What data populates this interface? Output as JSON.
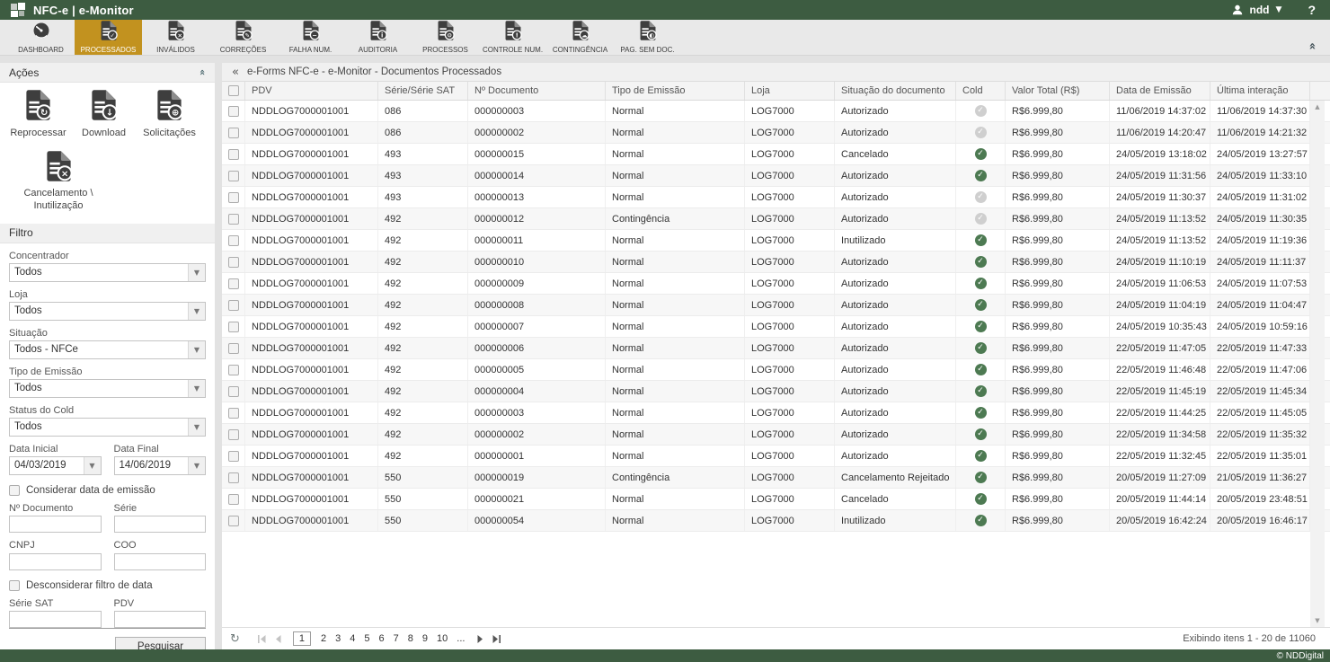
{
  "titlebar": {
    "title": "NFC-e | e-Monitor",
    "user": "ndd",
    "help": "?"
  },
  "tabs": [
    {
      "label": "DASHBOARD",
      "icon": "gauge",
      "active": false
    },
    {
      "label": "PROCESSADOS",
      "icon": "doc-check",
      "active": true
    },
    {
      "label": "INVÁLIDOS",
      "icon": "doc-x",
      "active": false
    },
    {
      "label": "CORREÇÕES",
      "icon": "doc-pencil",
      "active": false
    },
    {
      "label": "FALHA NUM.",
      "icon": "doc-minus",
      "active": false
    },
    {
      "label": "AUDITORIA",
      "icon": "doc-info",
      "active": false
    },
    {
      "label": "PROCESSOS",
      "icon": "doc-gear",
      "active": false
    },
    {
      "label": "CONTROLE NUM.",
      "icon": "doc-alert",
      "active": false
    },
    {
      "label": "CONTINGÊNCIA",
      "icon": "doc-cloud",
      "active": false
    },
    {
      "label": "PAG. SEM DOC.",
      "icon": "doc-half",
      "active": false
    }
  ],
  "actions": {
    "header": "Ações",
    "buttons": [
      {
        "label": "Reprocessar",
        "icon": "doc-reprocess",
        "wide": false
      },
      {
        "label": "Download",
        "icon": "doc-download",
        "wide": false
      },
      {
        "label": "Solicitações",
        "icon": "doc-globe",
        "wide": false
      },
      {
        "label": "Cancelamento \\ Inutilização",
        "icon": "doc-x",
        "wide": true
      }
    ]
  },
  "filter": {
    "header": "Filtro",
    "selects": [
      {
        "label": "Concentrador",
        "value": "Todos"
      },
      {
        "label": "Loja",
        "value": "Todos"
      },
      {
        "label": "Situação",
        "value": "Todos - NFCe"
      },
      {
        "label": "Tipo de Emissão",
        "value": "Todos"
      },
      {
        "label": "Status do Cold",
        "value": "Todos"
      }
    ],
    "dates": {
      "initial": {
        "label": "Data Inicial",
        "value": "04/03/2019"
      },
      "final": {
        "label": "Data Final",
        "value": "14/06/2019"
      }
    },
    "consider_emission_label": "Considerar data de emissão",
    "fields": {
      "documento": "Nº Documento",
      "serie": "Série",
      "cnpj": "CNPJ",
      "coo": "COO",
      "serie_sat": "Série SAT",
      "pdv": "PDV"
    },
    "disregard_date_label": "Desconsiderar filtro de data",
    "search_label": "Pesquisar"
  },
  "breadcrumb": "e-Forms NFC-e - e-Monitor - Documentos Processados",
  "table": {
    "columns": [
      "PDV",
      "Série/Série SAT",
      "Nº Documento",
      "Tipo de Emissão",
      "Loja",
      "Situação do documento",
      "Cold",
      "Valor Total (R$)",
      "Data de Emissão",
      "Última interação"
    ],
    "rows": [
      {
        "pdv": "NDDLOG7000001001",
        "serie": "086",
        "doc": "000000003",
        "tipo": "Normal",
        "loja": "LOG7000",
        "situacao": "Autorizado",
        "cold": "gray",
        "valor": "R$6.999,80",
        "emissao": "11/06/2019 14:37:02",
        "interacao": "11/06/2019 14:37:30"
      },
      {
        "pdv": "NDDLOG7000001001",
        "serie": "086",
        "doc": "000000002",
        "tipo": "Normal",
        "loja": "LOG7000",
        "situacao": "Autorizado",
        "cold": "gray",
        "valor": "R$6.999,80",
        "emissao": "11/06/2019 14:20:47",
        "interacao": "11/06/2019 14:21:32"
      },
      {
        "pdv": "NDDLOG7000001001",
        "serie": "493",
        "doc": "000000015",
        "tipo": "Normal",
        "loja": "LOG7000",
        "situacao": "Cancelado",
        "cold": "green",
        "valor": "R$6.999,80",
        "emissao": "24/05/2019 13:18:02",
        "interacao": "24/05/2019 13:27:57"
      },
      {
        "pdv": "NDDLOG7000001001",
        "serie": "493",
        "doc": "000000014",
        "tipo": "Normal",
        "loja": "LOG7000",
        "situacao": "Autorizado",
        "cold": "green",
        "valor": "R$6.999,80",
        "emissao": "24/05/2019 11:31:56",
        "interacao": "24/05/2019 11:33:10"
      },
      {
        "pdv": "NDDLOG7000001001",
        "serie": "493",
        "doc": "000000013",
        "tipo": "Normal",
        "loja": "LOG7000",
        "situacao": "Autorizado",
        "cold": "gray",
        "valor": "R$6.999,80",
        "emissao": "24/05/2019 11:30:37",
        "interacao": "24/05/2019 11:31:02"
      },
      {
        "pdv": "NDDLOG7000001001",
        "serie": "492",
        "doc": "000000012",
        "tipo": "Contingência",
        "loja": "LOG7000",
        "situacao": "Autorizado",
        "cold": "gray",
        "valor": "R$6.999,80",
        "emissao": "24/05/2019 11:13:52",
        "interacao": "24/05/2019 11:30:35"
      },
      {
        "pdv": "NDDLOG7000001001",
        "serie": "492",
        "doc": "000000011",
        "tipo": "Normal",
        "loja": "LOG7000",
        "situacao": "Inutilizado",
        "cold": "green",
        "valor": "R$6.999,80",
        "emissao": "24/05/2019 11:13:52",
        "interacao": "24/05/2019 11:19:36"
      },
      {
        "pdv": "NDDLOG7000001001",
        "serie": "492",
        "doc": "000000010",
        "tipo": "Normal",
        "loja": "LOG7000",
        "situacao": "Autorizado",
        "cold": "green",
        "valor": "R$6.999,80",
        "emissao": "24/05/2019 11:10:19",
        "interacao": "24/05/2019 11:11:37"
      },
      {
        "pdv": "NDDLOG7000001001",
        "serie": "492",
        "doc": "000000009",
        "tipo": "Normal",
        "loja": "LOG7000",
        "situacao": "Autorizado",
        "cold": "green",
        "valor": "R$6.999,80",
        "emissao": "24/05/2019 11:06:53",
        "interacao": "24/05/2019 11:07:53"
      },
      {
        "pdv": "NDDLOG7000001001",
        "serie": "492",
        "doc": "000000008",
        "tipo": "Normal",
        "loja": "LOG7000",
        "situacao": "Autorizado",
        "cold": "green",
        "valor": "R$6.999,80",
        "emissao": "24/05/2019 11:04:19",
        "interacao": "24/05/2019 11:04:47"
      },
      {
        "pdv": "NDDLOG7000001001",
        "serie": "492",
        "doc": "000000007",
        "tipo": "Normal",
        "loja": "LOG7000",
        "situacao": "Autorizado",
        "cold": "green",
        "valor": "R$6.999,80",
        "emissao": "24/05/2019 10:35:43",
        "interacao": "24/05/2019 10:59:16"
      },
      {
        "pdv": "NDDLOG7000001001",
        "serie": "492",
        "doc": "000000006",
        "tipo": "Normal",
        "loja": "LOG7000",
        "situacao": "Autorizado",
        "cold": "green",
        "valor": "R$6.999,80",
        "emissao": "22/05/2019 11:47:05",
        "interacao": "22/05/2019 11:47:33"
      },
      {
        "pdv": "NDDLOG7000001001",
        "serie": "492",
        "doc": "000000005",
        "tipo": "Normal",
        "loja": "LOG7000",
        "situacao": "Autorizado",
        "cold": "green",
        "valor": "R$6.999,80",
        "emissao": "22/05/2019 11:46:48",
        "interacao": "22/05/2019 11:47:06"
      },
      {
        "pdv": "NDDLOG7000001001",
        "serie": "492",
        "doc": "000000004",
        "tipo": "Normal",
        "loja": "LOG7000",
        "situacao": "Autorizado",
        "cold": "green",
        "valor": "R$6.999,80",
        "emissao": "22/05/2019 11:45:19",
        "interacao": "22/05/2019 11:45:34"
      },
      {
        "pdv": "NDDLOG7000001001",
        "serie": "492",
        "doc": "000000003",
        "tipo": "Normal",
        "loja": "LOG7000",
        "situacao": "Autorizado",
        "cold": "green",
        "valor": "R$6.999,80",
        "emissao": "22/05/2019 11:44:25",
        "interacao": "22/05/2019 11:45:05"
      },
      {
        "pdv": "NDDLOG7000001001",
        "serie": "492",
        "doc": "000000002",
        "tipo": "Normal",
        "loja": "LOG7000",
        "situacao": "Autorizado",
        "cold": "green",
        "valor": "R$6.999,80",
        "emissao": "22/05/2019 11:34:58",
        "interacao": "22/05/2019 11:35:32"
      },
      {
        "pdv": "NDDLOG7000001001",
        "serie": "492",
        "doc": "000000001",
        "tipo": "Normal",
        "loja": "LOG7000",
        "situacao": "Autorizado",
        "cold": "green",
        "valor": "R$6.999,80",
        "emissao": "22/05/2019 11:32:45",
        "interacao": "22/05/2019 11:35:01"
      },
      {
        "pdv": "NDDLOG7000001001",
        "serie": "550",
        "doc": "000000019",
        "tipo": "Contingência",
        "loja": "LOG7000",
        "situacao": "Cancelamento Rejeitado",
        "cold": "green",
        "valor": "R$6.999,80",
        "emissao": "20/05/2019 11:27:09",
        "interacao": "21/05/2019 11:36:27"
      },
      {
        "pdv": "NDDLOG7000001001",
        "serie": "550",
        "doc": "000000021",
        "tipo": "Normal",
        "loja": "LOG7000",
        "situacao": "Cancelado",
        "cold": "green",
        "valor": "R$6.999,80",
        "emissao": "20/05/2019 11:44:14",
        "interacao": "20/05/2019 23:48:51"
      },
      {
        "pdv": "NDDLOG7000001001",
        "serie": "550",
        "doc": "000000054",
        "tipo": "Normal",
        "loja": "LOG7000",
        "situacao": "Inutilizado",
        "cold": "green",
        "valor": "R$6.999,80",
        "emissao": "20/05/2019 16:42:24",
        "interacao": "20/05/2019 16:46:17"
      }
    ]
  },
  "pagination": {
    "pages": [
      "1",
      "2",
      "3",
      "4",
      "5",
      "6",
      "7",
      "8",
      "9",
      "10"
    ],
    "current": "1",
    "ellipsis": "...",
    "info": "Exibindo itens 1 - 20 de 11060"
  },
  "footer": {
    "copyright": "© NDDigital"
  },
  "colors": {
    "header_green": "#3d5c41",
    "active_tab_gold": "#c2921f",
    "cold_ok_green": "#4d7a52",
    "cold_neutral_gray": "#cfcfcf"
  }
}
